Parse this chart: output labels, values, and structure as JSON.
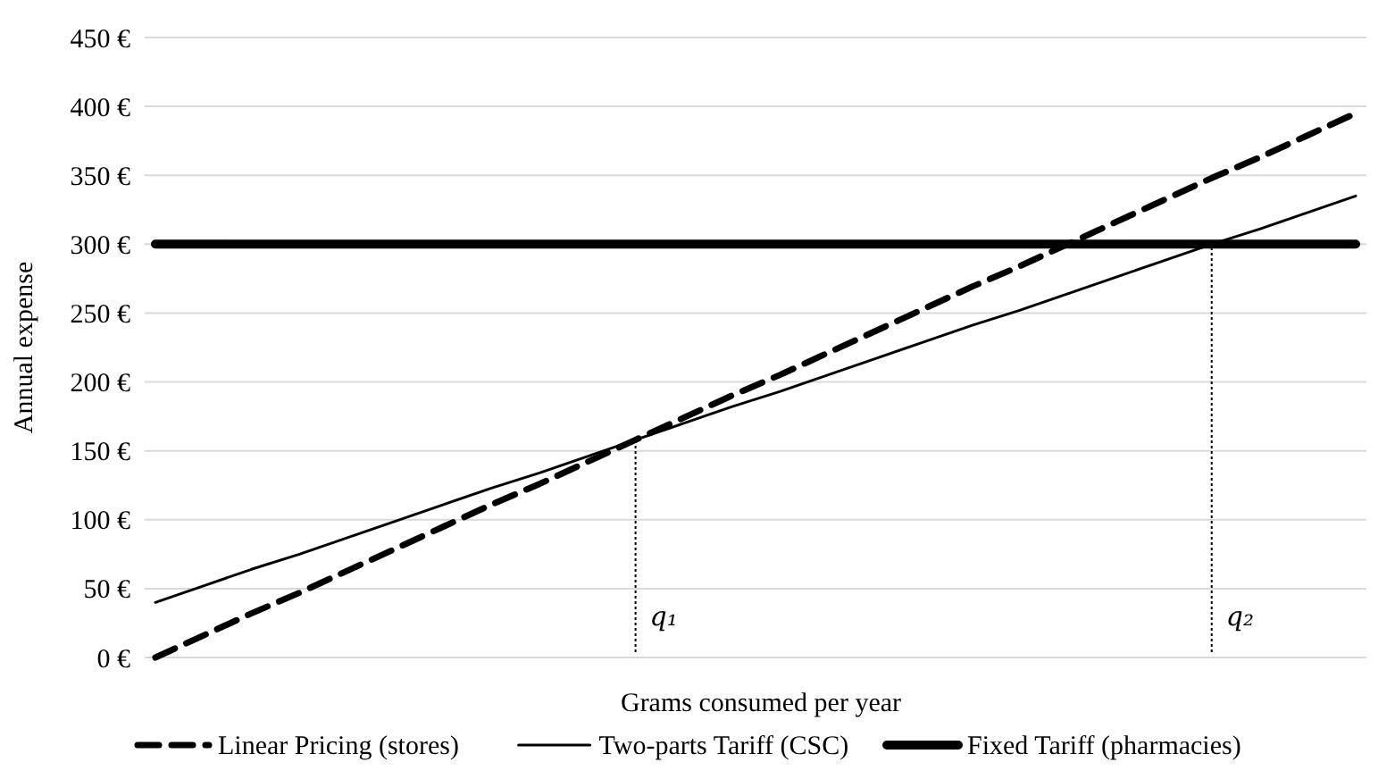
{
  "chart_data": {
    "type": "line",
    "xlabel": "Grams consumed per year",
    "ylabel": "Annual expense",
    "ylim": [
      0,
      450
    ],
    "categories": [
      null,
      null,
      null,
      null,
      null,
      null,
      null,
      null,
      null,
      null,
      null,
      null,
      null,
      null,
      null,
      null,
      null,
      null,
      null,
      null,
      null,
      null,
      null,
      null,
      null,
      null
    ],
    "yticks": [
      {
        "value": 0,
        "label": "0 €"
      },
      {
        "value": 50,
        "label": "50 €"
      },
      {
        "value": 100,
        "label": "100 €"
      },
      {
        "value": 150,
        "label": "150 €"
      },
      {
        "value": 200,
        "label": "200 €"
      },
      {
        "value": 250,
        "label": "250 €"
      },
      {
        "value": 300,
        "label": "300 €"
      },
      {
        "value": 350,
        "label": "350 €"
      },
      {
        "value": 400,
        "label": "400 €"
      },
      {
        "value": 450,
        "label": "450 €"
      }
    ],
    "tick_labels": "y",
    "grid": "y",
    "legend": "bottom",
    "marker": "none",
    "series": [
      {
        "name": "Linear Pricing (stores)",
        "color": "#000000",
        "line_style": "dashed",
        "values": [
          0,
          16,
          32,
          47,
          63,
          79,
          95,
          111,
          126,
          142,
          158,
          174,
          190,
          205,
          221,
          237,
          253,
          269,
          284,
          300,
          316,
          332,
          348,
          363,
          379,
          395
        ]
      },
      {
        "name": "Two-parts Tariff (CSC)",
        "color": "#000000",
        "line_style": "solid",
        "values": [
          40,
          52,
          64,
          75,
          87,
          99,
          111,
          123,
          134,
          146,
          158,
          170,
          182,
          193,
          205,
          217,
          229,
          241,
          252,
          264,
          276,
          288,
          300,
          311,
          323,
          335
        ]
      },
      {
        "name": "Fixed Tariff (pharmacies)",
        "color": "#000000",
        "line_style": "solid",
        "values": [
          300,
          300,
          300,
          300,
          300,
          300,
          300,
          300,
          300,
          300,
          300,
          300,
          300,
          300,
          300,
          300,
          300,
          300,
          300,
          300,
          300,
          300,
          300,
          300,
          300,
          300
        ]
      }
    ],
    "annotations": [
      "q₁",
      "q₂"
    ]
  }
}
